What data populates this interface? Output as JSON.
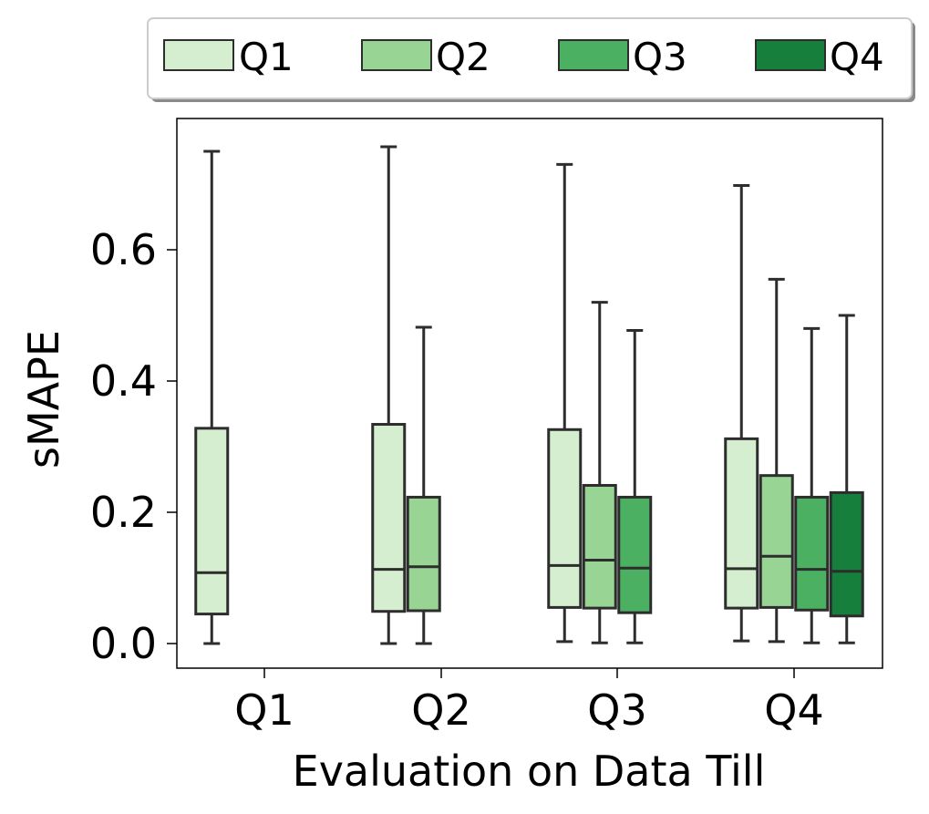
{
  "chart_data": {
    "type": "boxplot",
    "title": "",
    "xlabel": "Evaluation on Data Till",
    "ylabel": "sMAPE",
    "categories": [
      "Q1",
      "Q2",
      "Q3",
      "Q4"
    ],
    "yticks": [
      "0.0",
      "0.2",
      "0.4",
      "0.6"
    ],
    "ytick_values": [
      0.0,
      0.2,
      0.4,
      0.6
    ],
    "ylim": [
      -0.04,
      0.8
    ],
    "legend": {
      "position": "top",
      "entries": [
        {
          "label": "Q1",
          "color": "#d4eecf"
        },
        {
          "label": "Q2",
          "color": "#98d594"
        },
        {
          "label": "Q3",
          "color": "#4bb062"
        },
        {
          "label": "Q4",
          "color": "#157f3b"
        }
      ]
    },
    "series": [
      {
        "name": "Q1",
        "color": "#d4eecf",
        "boxes": [
          {
            "category": "Q1",
            "min": 0.0,
            "q1": 0.045,
            "median": 0.108,
            "q3": 0.328,
            "max": 0.75
          },
          {
            "category": "Q2",
            "min": 0.0,
            "q1": 0.049,
            "median": 0.113,
            "q3": 0.334,
            "max": 0.757
          },
          {
            "category": "Q3",
            "min": 0.003,
            "q1": 0.055,
            "median": 0.119,
            "q3": 0.326,
            "max": 0.73
          },
          {
            "category": "Q4",
            "min": 0.004,
            "q1": 0.054,
            "median": 0.114,
            "q3": 0.312,
            "max": 0.698
          }
        ]
      },
      {
        "name": "Q2",
        "color": "#98d594",
        "boxes": [
          {
            "category": "Q2",
            "min": 0.0,
            "q1": 0.05,
            "median": 0.117,
            "q3": 0.223,
            "max": 0.482
          },
          {
            "category": "Q3",
            "min": 0.001,
            "q1": 0.054,
            "median": 0.127,
            "q3": 0.241,
            "max": 0.52
          },
          {
            "category": "Q4",
            "min": 0.003,
            "q1": 0.055,
            "median": 0.133,
            "q3": 0.256,
            "max": 0.555
          }
        ]
      },
      {
        "name": "Q3",
        "color": "#4bb062",
        "boxes": [
          {
            "category": "Q3",
            "min": 0.001,
            "q1": 0.047,
            "median": 0.115,
            "q3": 0.223,
            "max": 0.477
          },
          {
            "category": "Q4",
            "min": 0.001,
            "q1": 0.051,
            "median": 0.113,
            "q3": 0.223,
            "max": 0.48
          }
        ]
      },
      {
        "name": "Q4",
        "color": "#157f3b",
        "boxes": [
          {
            "category": "Q4",
            "min": 0.001,
            "q1": 0.042,
            "median": 0.11,
            "q3": 0.23,
            "max": 0.5
          }
        ]
      }
    ]
  }
}
